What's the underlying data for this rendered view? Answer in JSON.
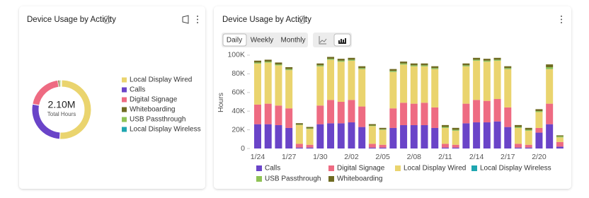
{
  "chart_data": [
    {
      "type": "donut",
      "title": "Device Usage by Activity",
      "center_value": "2.10M",
      "center_label": "Total Hours",
      "categories": [
        "Local Display Wired",
        "Calls",
        "Digital Signage",
        "Whiteboarding",
        "USB Passthrough",
        "Local Display Wireless"
      ],
      "values": [
        51,
        27,
        20,
        1,
        0.7,
        0.3
      ],
      "colors": [
        "#ead46e",
        "#6a44c8",
        "#ee6b82",
        "#6f6b22",
        "#8fc255",
        "#1fa6b0"
      ]
    },
    {
      "type": "stacked_bar",
      "title": "Device Usage by Activity",
      "ylabel": "Hours",
      "categories": [
        "1/24",
        null,
        null,
        "1/27",
        null,
        null,
        "1/30",
        null,
        null,
        "2/02",
        null,
        null,
        "2/05",
        null,
        null,
        "2/08",
        null,
        null,
        "2/11",
        null,
        null,
        "2/14",
        null,
        null,
        "2/17",
        null,
        null,
        "2/20",
        null,
        null
      ],
      "ylim": [
        0,
        103000
      ],
      "yticks": [
        0,
        {
          "value": 20000,
          "label": "20K"
        },
        {
          "value": 40000,
          "label": "40K"
        },
        {
          "value": 60000,
          "label": "60K"
        },
        {
          "value": 80000,
          "label": "80K"
        },
        {
          "value": 100000,
          "label": "100K"
        }
      ],
      "series": [
        {
          "name": "Calls",
          "color": "#6a44c8",
          "values": [
            26000,
            26000,
            25000,
            22000,
            1000,
            1000,
            26000,
            27000,
            27000,
            28000,
            23000,
            1000,
            1000,
            22000,
            25000,
            25000,
            25000,
            22000,
            1000,
            1000,
            27000,
            28000,
            28000,
            29000,
            23000,
            1000,
            1000,
            17000,
            26000,
            2000
          ]
        },
        {
          "name": "Digital Signage",
          "color": "#ee6b82",
          "values": [
            21000,
            22000,
            21000,
            21000,
            4000,
            3000,
            20000,
            25000,
            23000,
            24000,
            22000,
            4000,
            3000,
            21000,
            24000,
            23000,
            24000,
            22000,
            4000,
            3000,
            21000,
            24000,
            23000,
            24000,
            21000,
            4000,
            3000,
            5000,
            22000,
            5000
          ]
        },
        {
          "name": "Local Display Wired",
          "color": "#ead46e",
          "values": [
            44000,
            44000,
            43000,
            41000,
            20000,
            17000,
            42000,
            43000,
            43000,
            42000,
            40000,
            19000,
            16000,
            39000,
            41000,
            40000,
            39000,
            41000,
            17000,
            15000,
            40000,
            42000,
            42000,
            41000,
            41000,
            17000,
            15000,
            17000,
            37000,
            5000
          ]
        },
        {
          "name": "Local Display Wireless",
          "color": "#1fa6b0",
          "values": [
            100,
            100,
            100,
            100,
            100,
            100,
            100,
            100,
            100,
            100,
            100,
            100,
            100,
            100,
            100,
            100,
            100,
            100,
            100,
            100,
            100,
            100,
            100,
            100,
            100,
            100,
            100,
            100,
            100,
            100
          ]
        },
        {
          "name": "USB Passthrough",
          "color": "#8fc255",
          "values": [
            1000,
            1000,
            1000,
            1000,
            500,
            500,
            1000,
            1000,
            1000,
            1000,
            1000,
            500,
            500,
            1000,
            1000,
            1000,
            1000,
            1000,
            1000,
            1000,
            1000,
            1000,
            1000,
            1000,
            1000,
            1000,
            1000,
            1000,
            2000,
            1000
          ]
        },
        {
          "name": "Whiteboarding",
          "color": "#6f6b22",
          "values": [
            2000,
            2000,
            2000,
            2000,
            1500,
            1500,
            2000,
            2000,
            2000,
            2000,
            2000,
            1500,
            1500,
            2000,
            2000,
            2000,
            2000,
            2000,
            2000,
            2000,
            2000,
            2000,
            2000,
            2000,
            2000,
            2000,
            2000,
            2000,
            3000,
            1000
          ]
        }
      ]
    }
  ],
  "controls": {
    "periods": [
      "Daily",
      "Weekly",
      "Monthly"
    ]
  }
}
